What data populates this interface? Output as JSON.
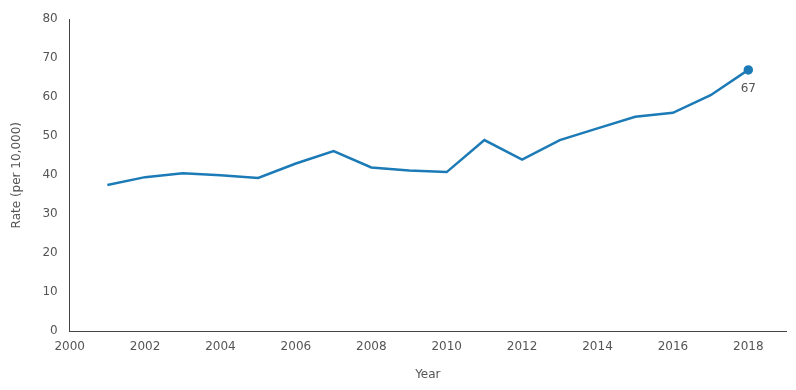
{
  "chart_data": {
    "type": "line",
    "x_label": "Year",
    "y_label": "Rate (per 10,000)",
    "x": [
      2001,
      2002,
      2003,
      2004,
      2005,
      2006,
      2007,
      2008,
      2009,
      2010,
      2011,
      2012,
      2013,
      2014,
      2015,
      2016,
      2017,
      2018
    ],
    "values": [
      37.5,
      39.5,
      40.5,
      40,
      39.3,
      43,
      46.2,
      42,
      41.2,
      40.8,
      49,
      44,
      49,
      52,
      55,
      56,
      60.5,
      67
    ],
    "color": "#1c7bb6",
    "xlim": [
      2000,
      2019
    ],
    "xticks": [
      2000,
      2002,
      2004,
      2006,
      2008,
      2010,
      2012,
      2014,
      2016,
      2018
    ],
    "ylim": [
      0,
      80
    ],
    "yticks": [
      0,
      10,
      20,
      30,
      40,
      50,
      60,
      70,
      80
    ],
    "grid": false,
    "annotations": [
      {
        "x": 2018,
        "y": 67,
        "text": "67"
      }
    ]
  }
}
